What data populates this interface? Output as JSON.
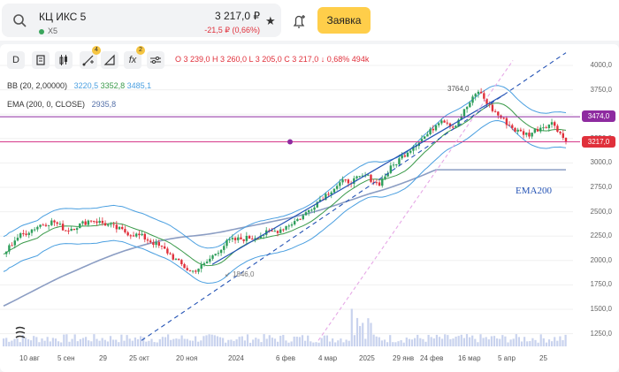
{
  "header": {
    "ticker_name": "КЦ ИКС 5",
    "ticker_code": "X5",
    "price": "3 217,0 ₽",
    "change": "-21,5 ₽ (0,66%)",
    "order_button": "Заявка"
  },
  "toolbar": {
    "items": [
      {
        "label": "D",
        "icon": "interval"
      },
      {
        "label": "",
        "icon": "chart-type-icon"
      },
      {
        "label": "",
        "icon": "candles-icon"
      },
      {
        "label": "",
        "icon": "drawing-tools-icon",
        "badge": "4"
      },
      {
        "label": "",
        "icon": "shapes-icon"
      },
      {
        "label": "fx",
        "icon": "indicators-icon",
        "badge": "2"
      },
      {
        "label": "",
        "icon": "settings-sliders-icon"
      }
    ]
  },
  "ohlc": "O 3 239,0  H 3 260,0  L 3 205,0  C 3 217,0  ↓ 0,68%  494k",
  "indicators": {
    "bb_label": "BB (20, 2,00000)",
    "bb_values": [
      "3220,5",
      "3352,8",
      "3485,1"
    ],
    "ema_label": "EMA (200, 0, CLOSE)",
    "ema_value": "2935,8"
  },
  "annotations": {
    "ema_text": "EMA200",
    "low": "1846,0",
    "high": "3764,0"
  },
  "price_badges": [
    {
      "value": "3474,0",
      "color": "#8e2ba0"
    },
    {
      "value": "3217,0",
      "color": "#e0303b"
    }
  ],
  "y_ticks": [
    "4000,0",
    "3750,0",
    "3500,0",
    "3250,0",
    "3000,0",
    "2750,0",
    "2500,0",
    "2250,0",
    "2000,0",
    "1750,0",
    "1500,0",
    "1250,0"
  ],
  "x_ticks": [
    "10 авг",
    "5 сен",
    "29",
    "25 окт",
    "20 ноя",
    "2024",
    "6 фев",
    "4 мар",
    "2025",
    "29 янв",
    "24 фев",
    "16 мар",
    "5 апр",
    "25"
  ],
  "chart_data": {
    "type": "candlestick",
    "title": "",
    "ylim": [
      1100,
      4050
    ],
    "series": [
      {
        "name": "close",
        "values": [
          2060,
          2230,
          2300,
          2370,
          2400,
          2310,
          2360,
          2420,
          2380,
          2330,
          2280,
          2250,
          2180,
          2100,
          1980,
          1880,
          1950,
          2080,
          2200,
          2220,
          2240,
          2280,
          2310,
          2380,
          2460,
          2590,
          2700,
          2800,
          2820,
          2870,
          2780,
          2950,
          3080,
          3200,
          3300,
          3460,
          3370,
          3560,
          3740,
          3560,
          3440,
          3330,
          3290,
          3370,
          3410,
          3217
        ]
      }
    ],
    "levels": [
      3474.0,
      3217.0
    ],
    "colors": {
      "up": "#2e9e5b",
      "down": "#e0303b",
      "bb": "#4a9fe0",
      "bb_mid": "#3a9a4a",
      "ema": "#8b9dc3",
      "trend": "#2453b5",
      "level_high": "#8e2ba0",
      "level_low": "#d63a8a"
    }
  }
}
